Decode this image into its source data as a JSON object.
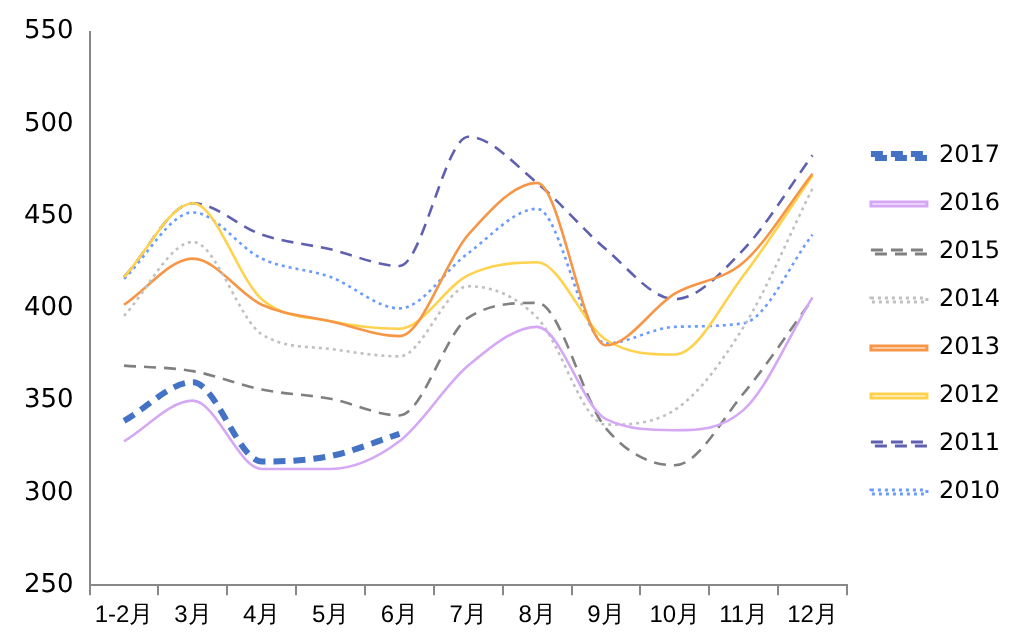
{
  "chart_data": {
    "type": "line",
    "categories": [
      "1-2月",
      "3月",
      "4月",
      "5月",
      "6月",
      "7月",
      "8月",
      "9月",
      "10月",
      "11月",
      "12月"
    ],
    "ylim": [
      250,
      550
    ],
    "yticks": [
      250,
      300,
      350,
      400,
      450,
      500,
      550
    ],
    "grid": false,
    "legend": "right",
    "marker": "none",
    "series": [
      {
        "name": "2017",
        "color": "#4472c4",
        "line_style": "dashed",
        "values": [
          339,
          360,
          317,
          320,
          332,
          null,
          null,
          null,
          null,
          null,
          null
        ]
      },
      {
        "name": "2016",
        "color": "#d4a8f5",
        "line_style": "solid",
        "values": [
          328,
          350,
          313,
          313,
          328,
          369,
          390,
          340,
          334,
          345,
          406
        ]
      },
      {
        "name": "2015",
        "color": "#808080",
        "line_style": "dashed",
        "values": [
          369,
          366,
          356,
          351,
          342,
          395,
          403,
          335,
          315,
          354,
          405
        ]
      },
      {
        "name": "2014",
        "color": "#c0c0c0",
        "line_style": "dotted",
        "values": [
          396,
          436,
          386,
          378,
          374,
          412,
          395,
          337,
          345,
          390,
          465
        ]
      },
      {
        "name": "2013",
        "color": "#f79646",
        "line_style": "solid",
        "values": [
          402,
          427,
          402,
          393,
          385,
          440,
          468,
          380,
          408,
          425,
          473
        ]
      },
      {
        "name": "2012",
        "color": "#ffd24d",
        "line_style": "solid",
        "values": [
          417,
          457,
          405,
          393,
          389,
          418,
          425,
          383,
          375,
          418,
          472
        ]
      },
      {
        "name": "2011",
        "color": "#6060b0",
        "line_style": "dashed",
        "values": [
          417,
          457,
          440,
          432,
          423,
          493,
          468,
          432,
          405,
          432,
          483
        ]
      },
      {
        "name": "2010",
        "color": "#6b9bff",
        "line_style": "dotted",
        "values": [
          416,
          452,
          427,
          417,
          400,
          430,
          454,
          381,
          390,
          392,
          440
        ]
      }
    ]
  }
}
